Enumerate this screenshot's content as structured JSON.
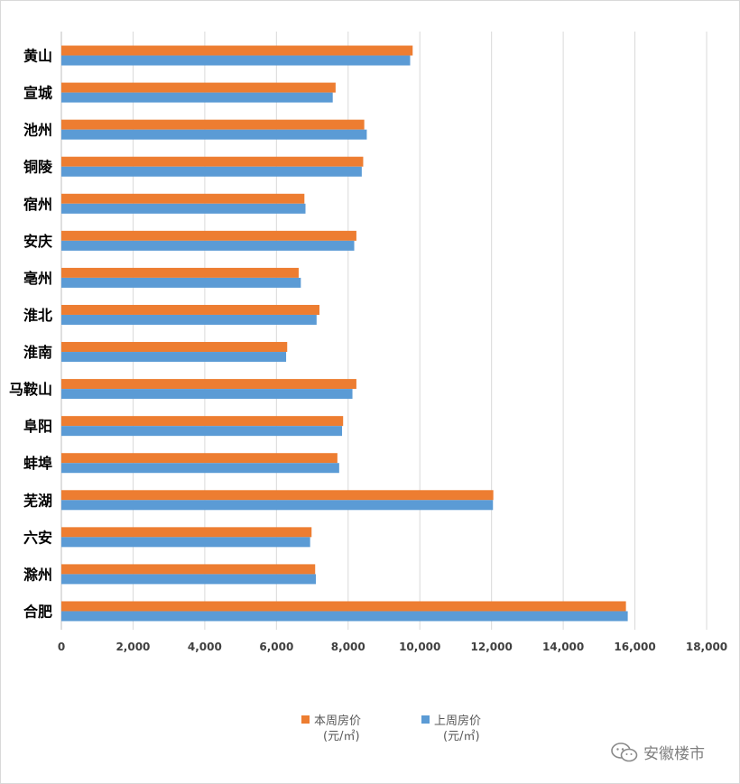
{
  "colors": {
    "this_week": "#ED7D31",
    "last_week": "#5B9BD5",
    "grid": "#d9d9d9"
  },
  "legend": {
    "this_week_label": "本周房价",
    "this_week_unit": "(元/㎡)",
    "last_week_label": "上周房价",
    "last_week_unit": "(元/㎡)"
  },
  "watermark": {
    "text": "安徽楼市",
    "icon": "wechat-icon"
  },
  "chart_data": {
    "type": "bar",
    "orientation": "horizontal",
    "categories": [
      "黄山",
      "宣城",
      "池州",
      "铜陵",
      "宿州",
      "安庆",
      "亳州",
      "淮北",
      "淮南",
      "马鞍山",
      "阜阳",
      "蚌埠",
      "芜湖",
      "六安",
      "滁州",
      "合肥"
    ],
    "series": [
      {
        "name": "本周房价",
        "values": [
          9800,
          7650,
          8450,
          8420,
          6780,
          8230,
          6620,
          7200,
          6300,
          8230,
          7860,
          7700,
          12050,
          6980,
          7080,
          15750
        ]
      },
      {
        "name": "上周房价",
        "values": [
          9730,
          7570,
          8520,
          8380,
          6810,
          8170,
          6680,
          7120,
          6270,
          8120,
          7830,
          7750,
          12040,
          6940,
          7100,
          15800
        ]
      }
    ],
    "xlim": [
      0,
      18000
    ],
    "xticks": [
      "0",
      "2,000",
      "4,000",
      "6,000",
      "8,000",
      "10,000",
      "12,000",
      "14,000",
      "16,000",
      "18,000"
    ],
    "grid": true,
    "legend_position": "bottom"
  }
}
